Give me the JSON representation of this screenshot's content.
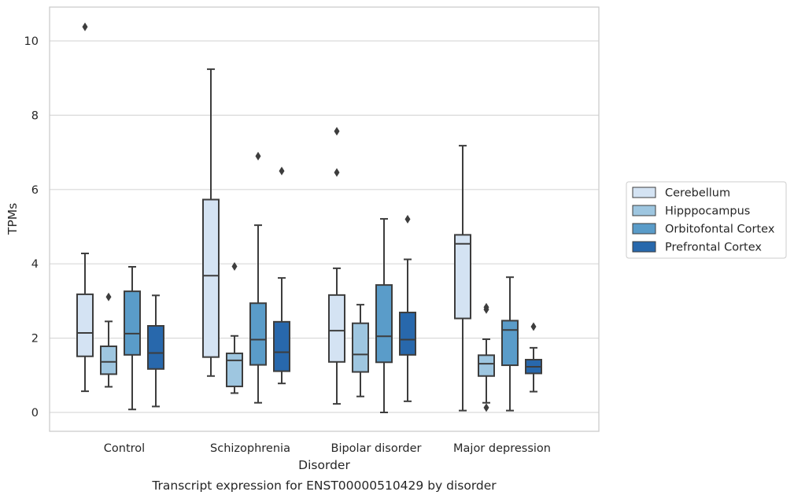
{
  "chart_data": {
    "type": "boxplot",
    "title": "",
    "caption": "Transcript expression for ENST00000510429 by disorder",
    "xlabel": "Disorder",
    "ylabel": "TPMs",
    "ylim": [
      -0.5,
      10.9
    ],
    "yticks": [
      0,
      2,
      4,
      6,
      8,
      10
    ],
    "yticks_labels": [
      "0",
      "2",
      "4",
      "6",
      "8",
      "10"
    ],
    "grid": "horizontal",
    "legend_position": "right",
    "categories": [
      "Control",
      "Schizophrenia",
      "Bipolar disorder",
      "Major depression"
    ],
    "series": [
      {
        "name": "Cerebellum",
        "color": "#d4e3f3",
        "boxes": [
          {
            "whislo": 0.57,
            "q1": 1.51,
            "med": 2.14,
            "q3": 3.18,
            "whishi": 4.28,
            "fliers": [
              10.38
            ]
          },
          {
            "whislo": 0.98,
            "q1": 1.49,
            "med": 3.68,
            "q3": 5.73,
            "whishi": 9.24,
            "fliers": []
          },
          {
            "whislo": 0.23,
            "q1": 1.36,
            "med": 2.2,
            "q3": 3.16,
            "whishi": 3.88,
            "fliers": [
              7.57,
              6.46
            ]
          },
          {
            "whislo": 0.05,
            "q1": 2.53,
            "med": 4.54,
            "q3": 4.78,
            "whishi": 7.18,
            "fliers": []
          }
        ]
      },
      {
        "name": "Hipppocampus",
        "color": "#9ec6e0",
        "boxes": [
          {
            "whislo": 0.69,
            "q1": 1.03,
            "med": 1.36,
            "q3": 1.78,
            "whishi": 2.45,
            "fliers": [
              3.11
            ]
          },
          {
            "whislo": 0.52,
            "q1": 0.7,
            "med": 1.4,
            "q3": 1.59,
            "whishi": 2.06,
            "fliers": [
              3.93
            ]
          },
          {
            "whislo": 0.43,
            "q1": 1.09,
            "med": 1.56,
            "q3": 2.4,
            "whishi": 2.9,
            "fliers": []
          },
          {
            "whislo": 0.26,
            "q1": 0.98,
            "med": 1.31,
            "q3": 1.54,
            "whishi": 1.97,
            "fliers": [
              0.13,
              2.77,
              2.83
            ]
          }
        ]
      },
      {
        "name": "Orbitofontal Cortex",
        "color": "#5a9cc9",
        "boxes": [
          {
            "whislo": 0.08,
            "q1": 1.55,
            "med": 2.12,
            "q3": 3.26,
            "whishi": 3.92,
            "fliers": []
          },
          {
            "whislo": 0.26,
            "q1": 1.28,
            "med": 1.96,
            "q3": 2.94,
            "whishi": 5.04,
            "fliers": [
              6.9
            ]
          },
          {
            "whislo": 0.0,
            "q1": 1.35,
            "med": 2.05,
            "q3": 3.43,
            "whishi": 5.21,
            "fliers": []
          },
          {
            "whislo": 0.05,
            "q1": 1.27,
            "med": 2.22,
            "q3": 2.47,
            "whishi": 3.64,
            "fliers": []
          }
        ]
      },
      {
        "name": "Prefrontal Cortex",
        "color": "#2868ac",
        "boxes": [
          {
            "whislo": 0.16,
            "q1": 1.17,
            "med": 1.6,
            "q3": 2.33,
            "whishi": 3.15,
            "fliers": []
          },
          {
            "whislo": 0.78,
            "q1": 1.11,
            "med": 1.62,
            "q3": 2.44,
            "whishi": 3.62,
            "fliers": [
              6.5
            ]
          },
          {
            "whislo": 0.3,
            "q1": 1.55,
            "med": 1.96,
            "q3": 2.69,
            "whishi": 4.12,
            "fliers": [
              5.2
            ]
          },
          {
            "whislo": 0.56,
            "q1": 1.05,
            "med": 1.23,
            "q3": 1.42,
            "whishi": 1.74,
            "fliers": [
              2.31
            ]
          }
        ]
      }
    ]
  }
}
